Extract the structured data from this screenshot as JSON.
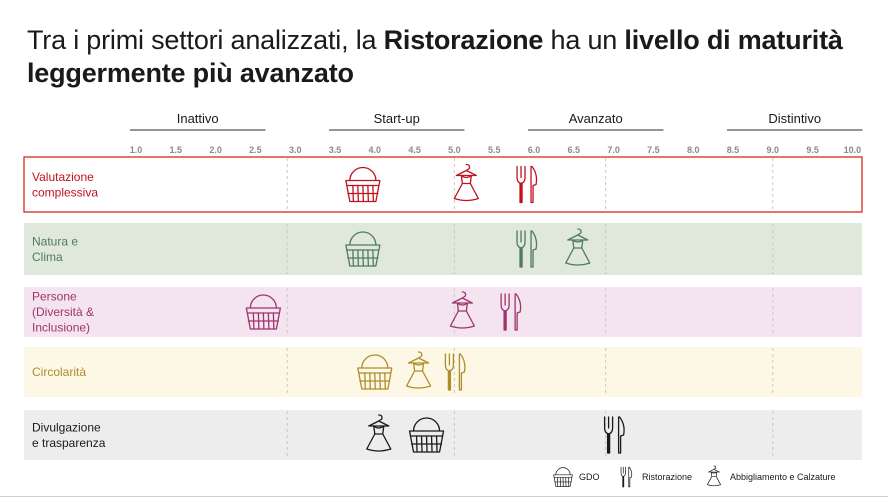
{
  "title": {
    "part1": "Tra i primi settori analizzati, la ",
    "part2": "Ristorazione",
    "part3": " ha un ",
    "part4": "livello di maturità leggermente più avanzato"
  },
  "chart_data": {
    "type": "scatter",
    "xlim": [
      1.0,
      10.0
    ],
    "ticks": [
      "1.0",
      "1.5",
      "2.0",
      "2.5",
      "3.0",
      "3.5",
      "4.0",
      "4.5",
      "5.0",
      "5.5",
      "6.0",
      "6.5",
      "7.0",
      "7.5",
      "8.0",
      "8.5",
      "9.0",
      "9.5",
      "10.0"
    ],
    "stages": [
      {
        "label": "Inattivo",
        "from": 1.0,
        "to": 2.5
      },
      {
        "label": "Start-up",
        "from": 3.5,
        "to": 5.0
      },
      {
        "label": "Avanzato",
        "from": 6.0,
        "to": 7.5
      },
      {
        "label": "Distintivo",
        "from": 8.5,
        "to": 10.0
      }
    ],
    "rows": [
      {
        "label": "Valutazione\ncomplessiva",
        "fill": "#ffffff",
        "border": "#d52b1e",
        "text": "#c0111f",
        "points": {
          "GDO": 3.85,
          "Abbigliamento e Calzature": 5.15,
          "Ristorazione": 5.9
        }
      },
      {
        "label": "Natura e\nClima",
        "fill": "#e0e7db",
        "text": "#4e7d5b",
        "points": {
          "GDO": 3.85,
          "Ristorazione": 5.9,
          "Abbigliamento e Calzature": 6.55
        }
      },
      {
        "label": "Persone\n(Diversità &\nInclusione)",
        "fill": "#f3e4ef",
        "text": "#a0336d",
        "points": {
          "GDO": 2.6,
          "Abbigliamento e Calzature": 5.1,
          "Ristorazione": 5.7
        }
      },
      {
        "label": "Circolarità",
        "fill": "#fdf7e6",
        "text": "#b08d2c",
        "points": {
          "GDO": 4.0,
          "Abbigliamento e Calzature": 4.55,
          "Ristorazione": 5.0
        }
      },
      {
        "label": "Divulgazione\ne trasparenza",
        "fill": "#ededed",
        "text": "#1a1a1a",
        "points": {
          "Abbigliamento e Calzature": 4.05,
          "GDO": 4.65,
          "Ristorazione": 7.0
        }
      }
    ],
    "colors": {
      "Valutazione": "#c0111f",
      "Natura": "#4e7d5b",
      "Persone": "#a0336d",
      "Circolarità": "#b08d2c",
      "Divulgazione": "#1a1a1a"
    },
    "legend": {
      "placement": "bottom-right",
      "items": [
        {
          "label": "GDO",
          "icon": "basket-icon"
        },
        {
          "label": "Ristorazione",
          "icon": "fork-knife-icon"
        },
        {
          "label": "Abbigliamento e Calzature",
          "icon": "dress-icon"
        }
      ]
    }
  }
}
